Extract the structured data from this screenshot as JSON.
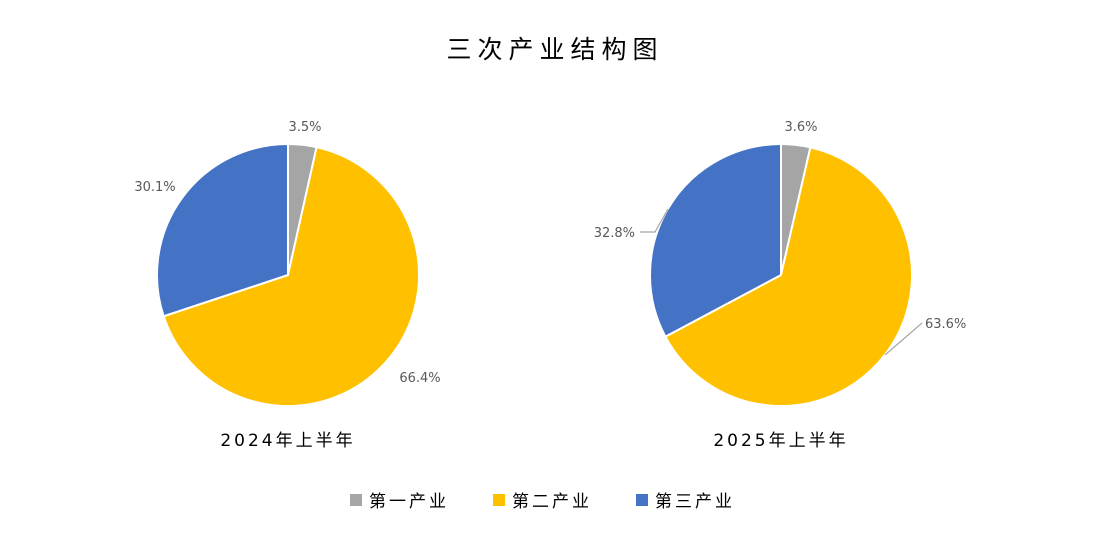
{
  "chart_data": {
    "type": "pie",
    "title": "三次产业结构图",
    "legend_position": "bottom",
    "categories": [
      "第一产业",
      "第二产业",
      "第三产业"
    ],
    "colors": [
      "#A5A5A5",
      "#FFC000",
      "#4472C4"
    ],
    "series": [
      {
        "name": "2024年上半年",
        "values": [
          3.5,
          66.4,
          30.1
        ],
        "labels": [
          "3.5%",
          "66.4%",
          "30.1%"
        ]
      },
      {
        "name": "2025年上半年",
        "values": [
          3.6,
          63.6,
          32.8
        ],
        "labels": [
          "3.6%",
          "63.6%",
          "32.8%"
        ]
      }
    ]
  }
}
